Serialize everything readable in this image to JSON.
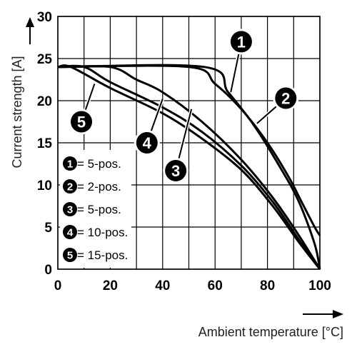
{
  "chart_data": {
    "type": "line",
    "title": "",
    "xlabel": "Ambient temperature [°C]",
    "ylabel": "Current strength [A]",
    "xlim": [
      0,
      100
    ],
    "ylim": [
      0,
      30
    ],
    "x_ticks": [
      "0",
      "20",
      "40",
      "60",
      "80",
      "100"
    ],
    "y_ticks": [
      "0",
      "5",
      "10",
      "15",
      "20",
      "25",
      "30"
    ],
    "grid": true,
    "series": [
      {
        "id": "1",
        "points": [
          [
            0,
            24
          ],
          [
            56,
            24
          ],
          [
            65,
            21
          ],
          [
            75,
            17
          ],
          [
            85,
            12
          ],
          [
            92,
            8
          ],
          [
            98,
            3
          ],
          [
            100,
            0
          ]
        ]
      },
      {
        "id": "2",
        "points": [
          [
            0,
            24
          ],
          [
            50,
            24
          ],
          [
            60,
            22
          ],
          [
            70,
            19
          ],
          [
            80,
            15
          ],
          [
            88,
            11
          ],
          [
            93,
            8
          ],
          [
            98,
            5
          ],
          [
            100,
            4
          ]
        ]
      },
      {
        "id": "3",
        "points": [
          [
            0,
            24
          ],
          [
            10,
            24
          ],
          [
            20,
            22.2
          ],
          [
            40,
            19.2
          ],
          [
            55,
            16.3
          ],
          [
            70,
            12.3
          ],
          [
            82,
            8
          ],
          [
            92,
            3.5
          ],
          [
            100,
            0
          ]
        ]
      },
      {
        "id": "4",
        "points": [
          [
            0,
            24
          ],
          [
            20,
            24
          ],
          [
            30,
            22.5
          ],
          [
            40,
            21
          ],
          [
            55,
            17.5
          ],
          [
            70,
            13
          ],
          [
            82,
            8.5
          ],
          [
            92,
            4
          ],
          [
            100,
            0
          ]
        ]
      },
      {
        "id": "5",
        "points": [
          [
            0,
            24
          ],
          [
            5,
            24
          ],
          [
            20,
            21.5
          ],
          [
            40,
            18.5
          ],
          [
            55,
            15.5
          ],
          [
            70,
            11.8
          ],
          [
            82,
            7.5
          ],
          [
            92,
            3.2
          ],
          [
            100,
            0
          ]
        ]
      }
    ],
    "callouts": [
      {
        "id": "1",
        "x": 70,
        "y": 27,
        "target": [
          66,
          21
        ]
      },
      {
        "id": "2",
        "x": 87,
        "y": 20.3,
        "target": [
          76,
          17.3
        ]
      },
      {
        "id": "3",
        "x": 45,
        "y": 11.7,
        "target": [
          51,
          19
        ]
      },
      {
        "id": "4",
        "x": 34,
        "y": 15,
        "target": [
          40,
          20.2
        ]
      },
      {
        "id": "5",
        "x": 9,
        "y": 17.5,
        "target": [
          14,
          22
        ]
      }
    ],
    "legend": {
      "placement": "bottom-left",
      "items": [
        {
          "id": "1",
          "label": "= 5-pos."
        },
        {
          "id": "2",
          "label": "= 2-pos."
        },
        {
          "id": "3",
          "label": "= 5-pos."
        },
        {
          "id": "4",
          "label": "= 10-pos."
        },
        {
          "id": "5",
          "label": "= 15-pos."
        }
      ]
    }
  }
}
